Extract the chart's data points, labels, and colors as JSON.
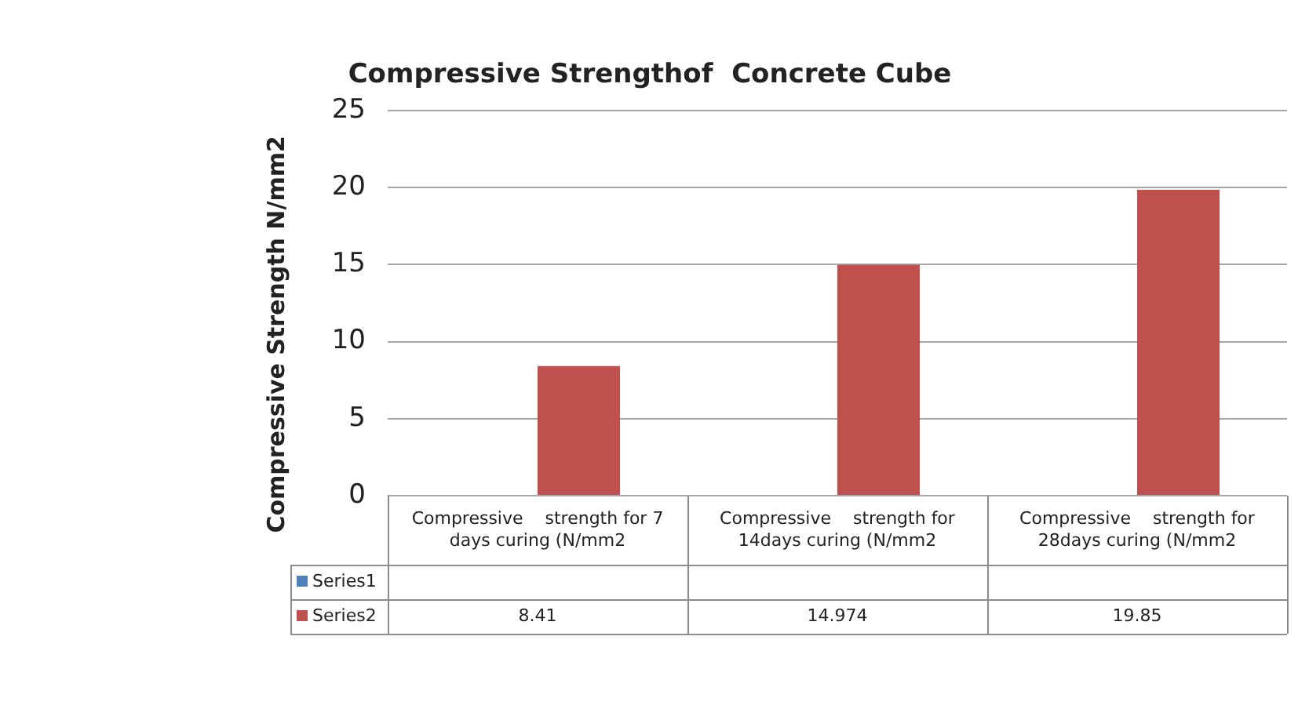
{
  "chart_data": {
    "type": "bar",
    "title": "Compressive Strengthof  Concrete Cube",
    "ylabel": "Compressive Strength N/mm2",
    "categories": [
      "Compressive    strength for 7 days curing (N/mm2",
      "Compressive    strength for 14days curing (N/mm2",
      "Compressive    strength for 28days curing (N/mm2"
    ],
    "series": [
      {
        "name": "Series1",
        "color": "#4f81bd",
        "values": [
          null,
          null,
          null
        ]
      },
      {
        "name": "Series2",
        "color": "#c0504d",
        "values": [
          8.41,
          14.974,
          19.85
        ]
      }
    ],
    "ylim": [
      0,
      25
    ],
    "yticks": [
      0,
      5,
      10,
      15,
      20,
      25
    ],
    "grid": "y",
    "legend": "bottom",
    "data_labels": true
  }
}
